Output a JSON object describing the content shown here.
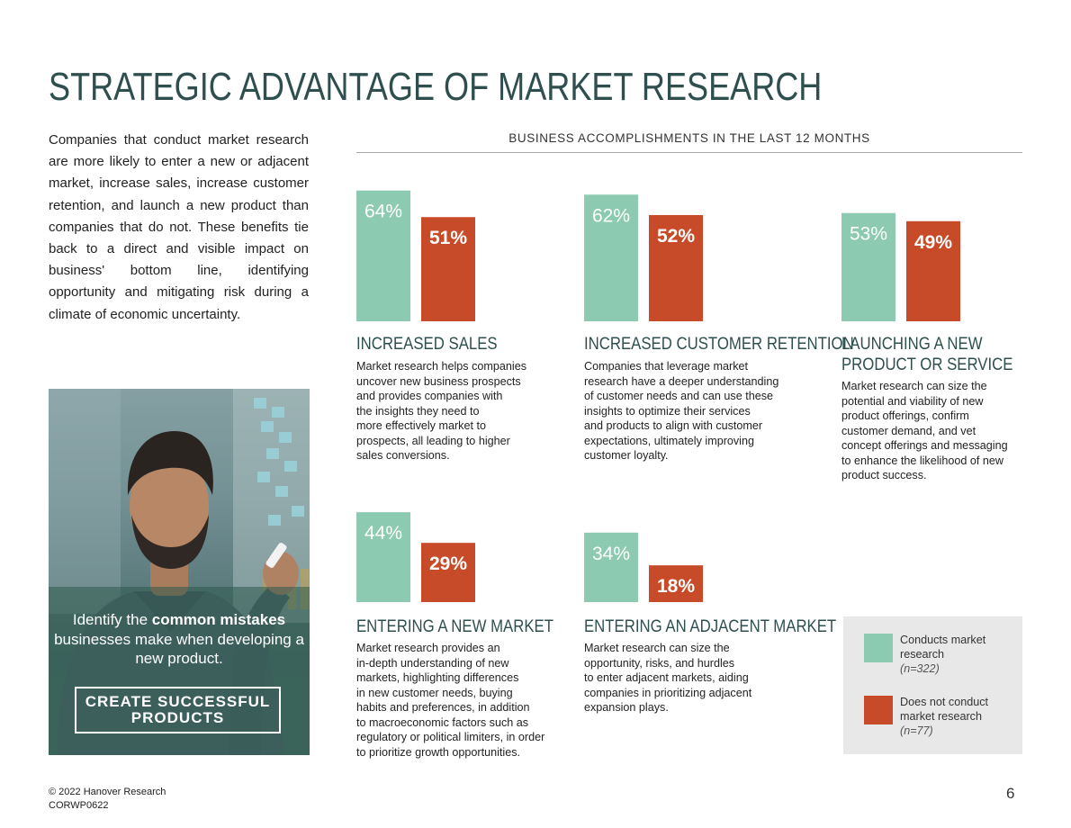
{
  "page": {
    "title": "STRATEGIC ADVANTAGE OF MARKET RESEARCH",
    "intro": "Companies that conduct market research are more likely to enter a new or adjacent market, increase sales, increase customer retention, and launch a new product than companies that do not. These benefits tie back to a direct and visible impact on business' bottom line, identifying opportunity and mitigating risk during a climate of economic uncertainty.",
    "footer": {
      "copyright": "© 2022 Hanover Research",
      "code": "CORWP0622",
      "page_number": "6"
    }
  },
  "promo": {
    "text_pre": "Identify the ",
    "text_bold": "common mistakes",
    "text_post": " businesses make when developing a new product.",
    "button_label": "CREATE SUCCESSFUL PRODUCTS"
  },
  "chart_data": {
    "type": "bar",
    "title": "BUSINESS ACCOMPLISHMENTS IN THE LAST 12 MONTHS",
    "value_unit": "%",
    "series": [
      {
        "name": "Conducts market research",
        "sample": "(n=322)",
        "color": "#8dcab2"
      },
      {
        "name": "Does not conduct market research",
        "sample": "(n=77)",
        "color": "#c74b29"
      }
    ],
    "panels": [
      {
        "heading": "INCREASED SALES",
        "values": [
          64,
          51
        ],
        "description": "Market research helps companies\nuncover new business prospects\nand provides companies with\nthe insights they need to\nmore effectively market to\nprospects, all leading to higher\nsales conversions."
      },
      {
        "heading": "INCREASED CUSTOMER RETENTION",
        "values": [
          62,
          52
        ],
        "description": "Companies that leverage market\nresearch have a deeper understanding\nof customer needs and can use these\ninsights to optimize their services\nand products to align with customer\nexpectations, ultimately improving\ncustomer loyalty."
      },
      {
        "heading": "LAUNCHING A NEW\nPRODUCT OR SERVICE",
        "values": [
          53,
          49
        ],
        "description": "Market research can size the\npotential and viability of new\nproduct offerings, confirm\ncustomer demand, and vet\nconcept offerings and messaging\nto enhance the likelihood of new\nproduct success."
      },
      {
        "heading": "ENTERING A NEW MARKET",
        "values": [
          44,
          29
        ],
        "description": "Market research provides an\nin-depth understanding of new\nmarkets, highlighting differences\nin new customer needs, buying\nhabits and preferences, in addition\nto macroeconomic factors such as\nregulatory or political limiters, in order\nto prioritize growth opportunities."
      },
      {
        "heading": "ENTERING AN ADJACENT MARKET",
        "values": [
          34,
          18
        ],
        "description": "Market research can size the\nopportunity, risks, and hurdles\nto enter adjacent markets, aiding\ncompanies in prioritizing adjacent\nexpansion plays."
      }
    ]
  }
}
